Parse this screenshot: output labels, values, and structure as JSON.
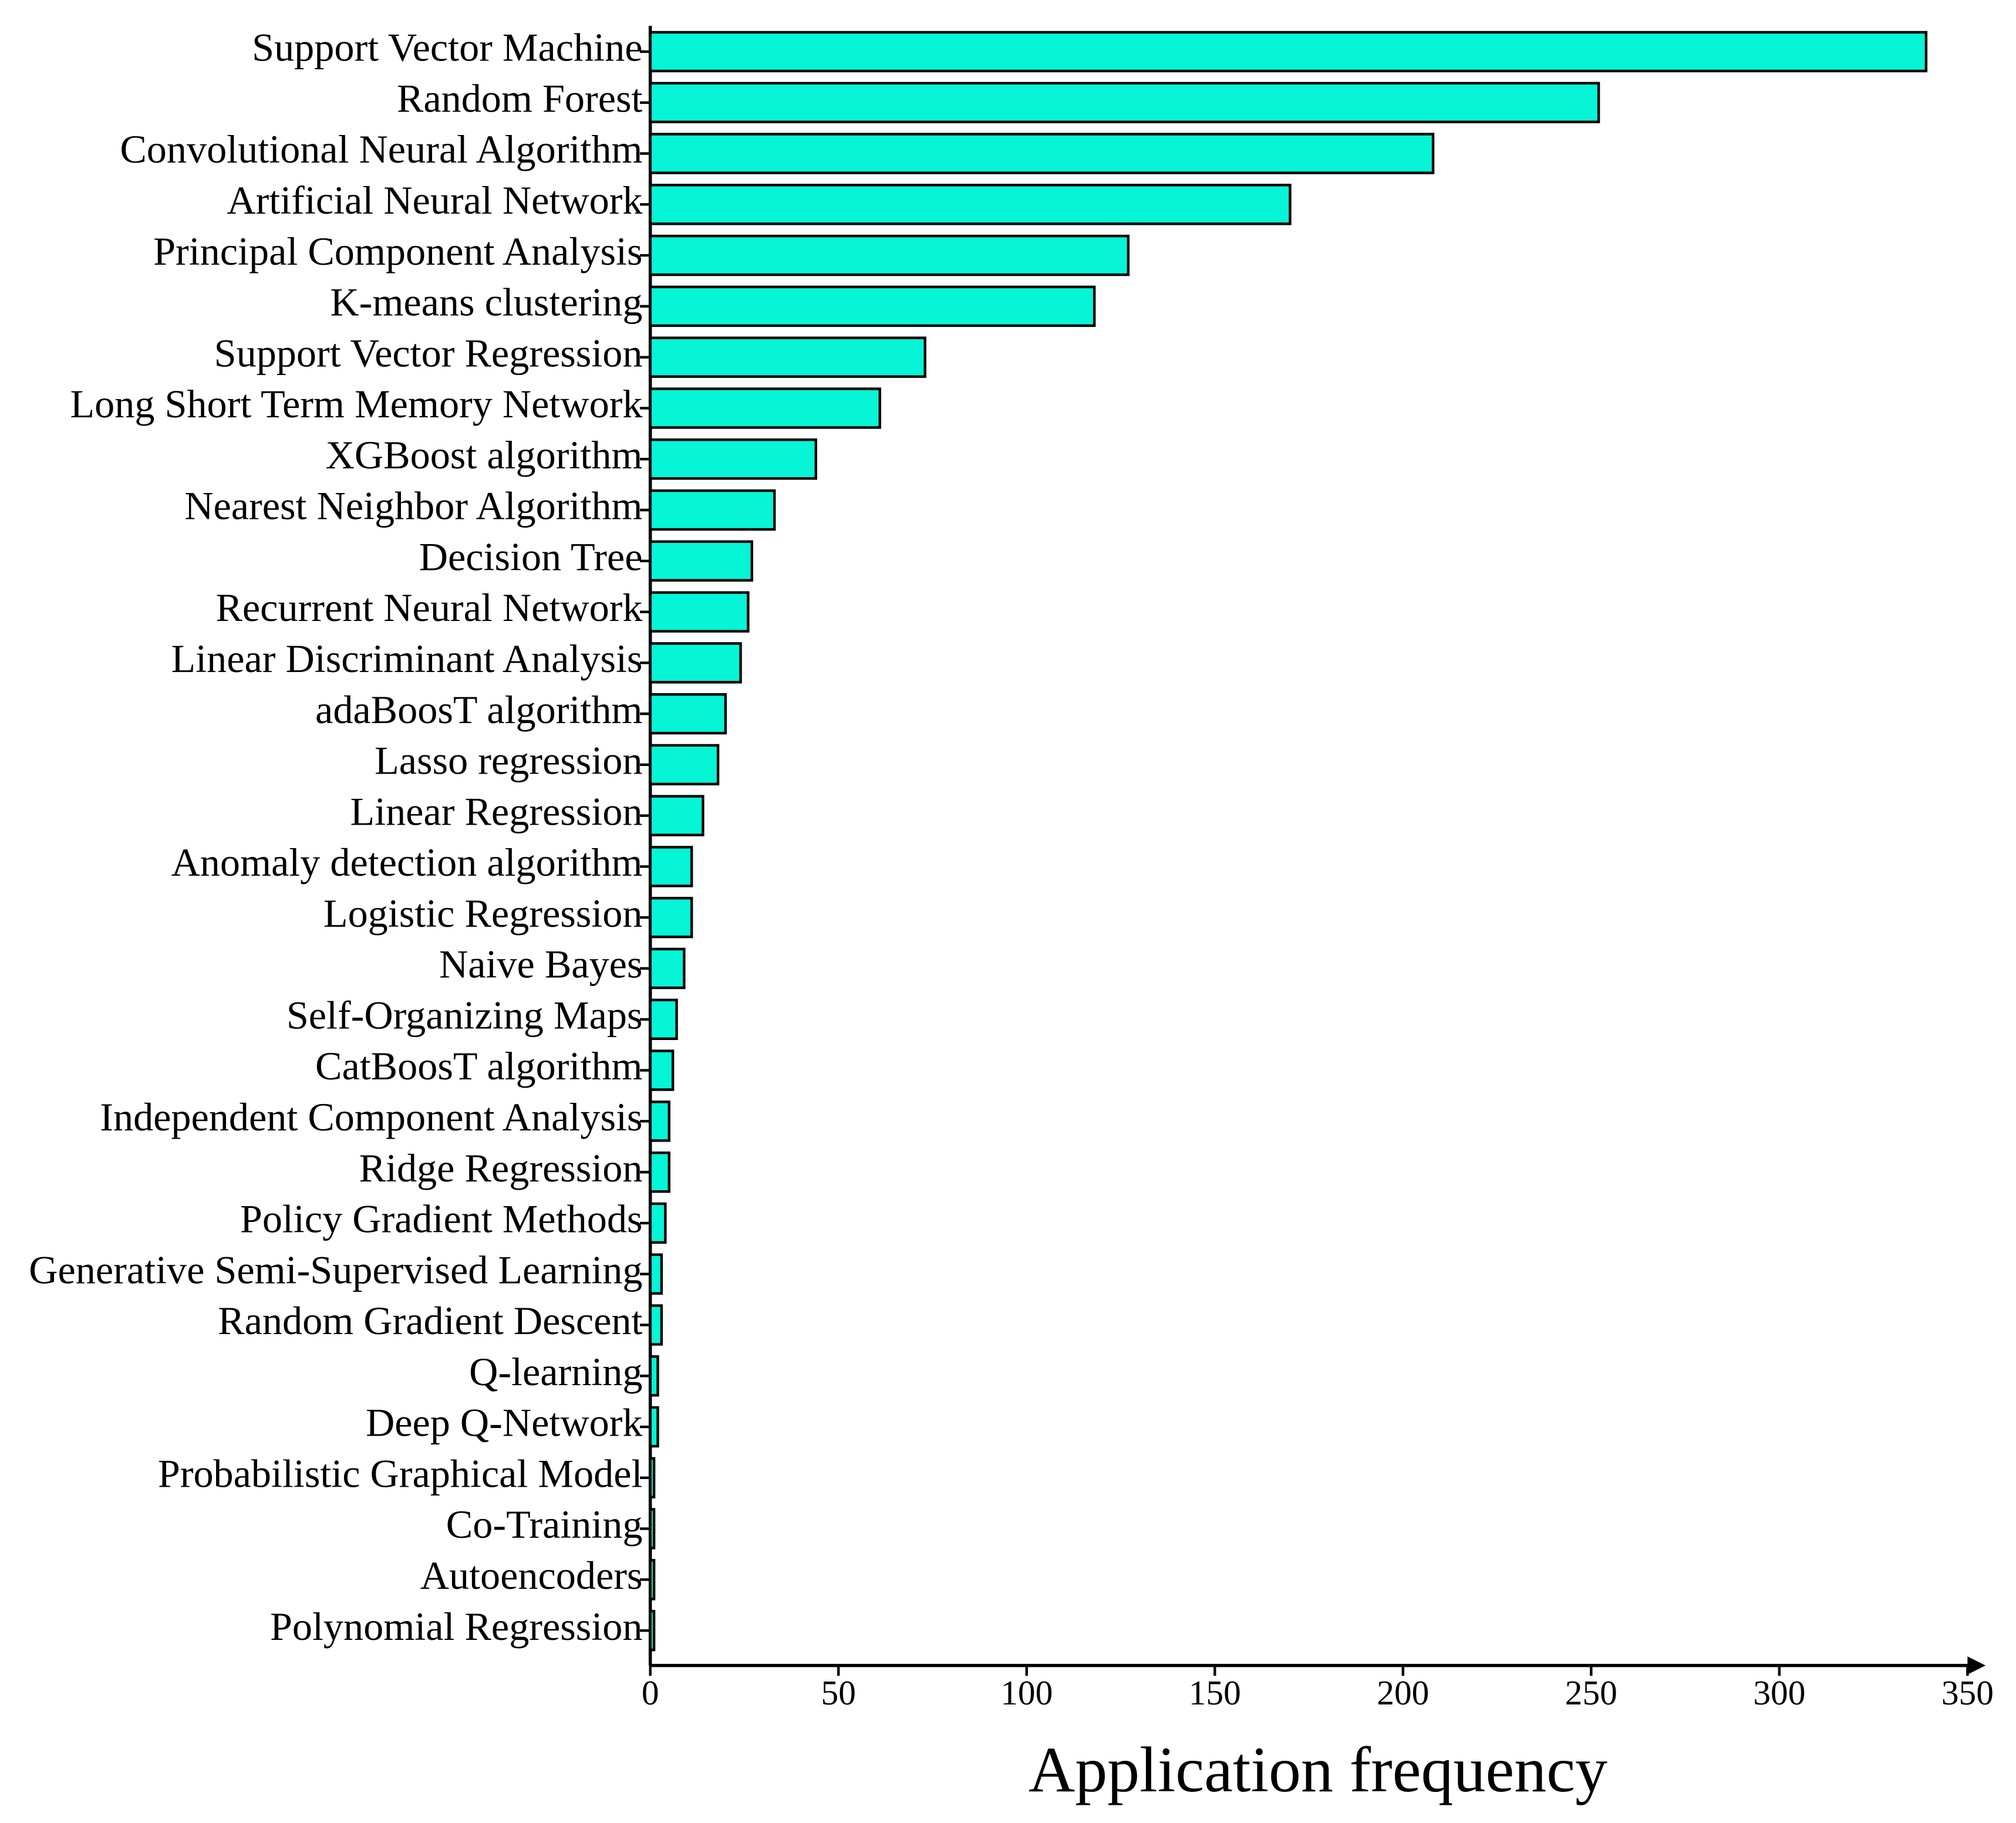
{
  "chart_data": {
    "type": "bar",
    "orientation": "horizontal",
    "x_label": "Application frequency",
    "categories": [
      "Support Vector Machine",
      "Random Forest",
      "Convolutional Neural Algorithm",
      "Artificial Neural Network",
      "Principal Component Analysis",
      "K-means clustering",
      "Support Vector Regression",
      "Long Short Term Memory Network",
      "XGBoost algorithm",
      "Nearest Neighbor Algorithm",
      "Decision Tree",
      "Recurrent Neural Network",
      "Linear Discriminant Analysis",
      "adaBoosT algorithm",
      "Lasso regression",
      "Linear Regression",
      "Anomaly detection algorithm",
      "Logistic Regression",
      "Naive Bayes",
      "Self-Organizing Maps",
      "CatBoosT algorithm",
      "Independent Component Analysis",
      "Ridge Regression",
      "Policy Gradient Methods",
      "Generative Semi-Supervised Learning",
      "Random Gradient Descent",
      "Q-learning",
      "Deep Q-Network",
      "Probabilistic Graphical Model",
      "Co-Training",
      "Autoencoders",
      "Polynomial Regression"
    ],
    "values": [
      339,
      252,
      208,
      170,
      127,
      118,
      73,
      61,
      44,
      33,
      27,
      26,
      24,
      20,
      18,
      14,
      11,
      11,
      9,
      7,
      6,
      5,
      5,
      4,
      3,
      3,
      2,
      2,
      1,
      1,
      1,
      1
    ],
    "color": "#05f5d6",
    "xlim": [
      0,
      350
    ],
    "xticks": [
      0,
      50,
      100,
      150,
      200,
      250,
      300,
      350
    ],
    "grid": false
  }
}
